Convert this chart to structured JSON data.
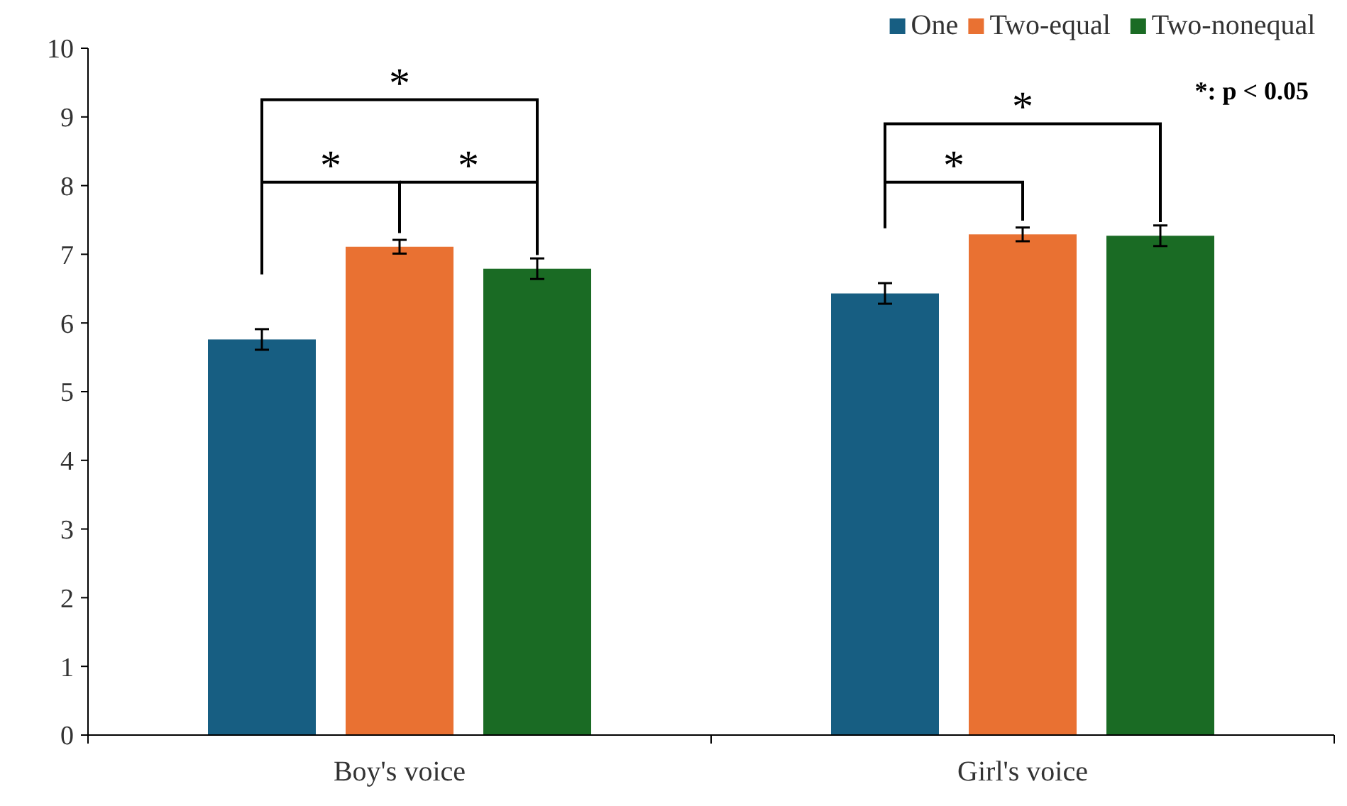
{
  "chart_data": {
    "type": "bar",
    "categories": [
      "Boy's voice",
      "Girl's voice"
    ],
    "series": [
      {
        "name": "One",
        "color": "#175e82",
        "values": [
          5.76,
          6.43
        ],
        "errors": [
          0.15,
          0.15
        ]
      },
      {
        "name": "Two-equal",
        "color": "#e97132",
        "values": [
          7.11,
          7.29
        ],
        "errors": [
          0.1,
          0.1
        ]
      },
      {
        "name": "Two-nonequal",
        "color": "#1a6b24",
        "values": [
          6.79,
          7.27
        ],
        "errors": [
          0.15,
          0.15
        ]
      }
    ],
    "ylim": [
      0,
      10
    ],
    "yticks": [
      0,
      1,
      2,
      3,
      4,
      5,
      6,
      7,
      8,
      9,
      10
    ],
    "grid": false,
    "legend": "top right",
    "annotations": [
      "*",
      "*",
      "*",
      "*",
      "*",
      "*: p < 0.05"
    ]
  }
}
